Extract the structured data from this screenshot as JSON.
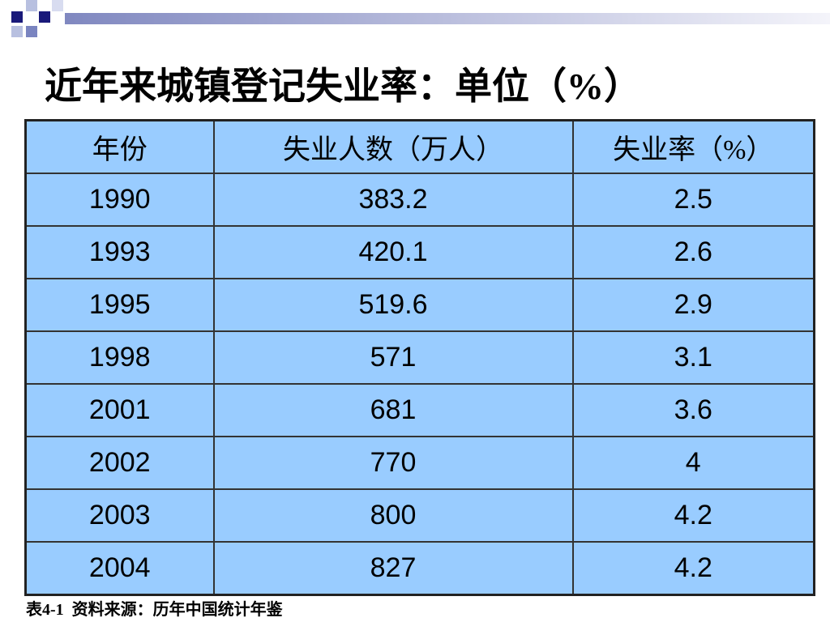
{
  "title": "近年来城镇登记失业率：单位（%）",
  "table": {
    "header": [
      "年份",
      "失业人数（万人）",
      "失业率（%）"
    ],
    "rows": [
      [
        "1990",
        "383.2",
        "2.5"
      ],
      [
        "1993",
        "420.1",
        "2.6"
      ],
      [
        "1995",
        "519.6",
        "2.9"
      ],
      [
        "1998",
        "571",
        "3.1"
      ],
      [
        "2001",
        "681",
        "3.6"
      ],
      [
        "2002",
        "770",
        "4"
      ],
      [
        "2003",
        "800",
        "4.2"
      ],
      [
        "2004",
        "827",
        "4.2"
      ]
    ]
  },
  "caption": "表4-1  资料来源：历年中国统计年鉴"
}
